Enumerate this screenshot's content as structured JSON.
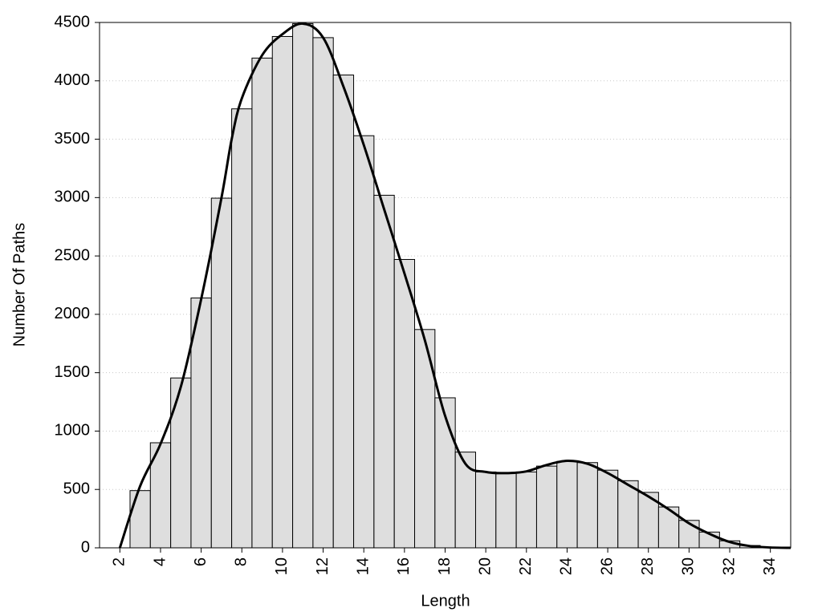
{
  "chart_data": {
    "type": "histogram",
    "x_label": "Length",
    "y_label": "Number Of Paths",
    "bins": [
      2.5,
      3.5,
      4.5,
      5.5,
      6.5,
      7.5,
      8.5,
      9.5,
      10.5,
      11.5,
      12.5,
      13.5,
      14.5,
      15.5,
      16.5,
      17.5,
      18.5,
      19.5,
      20.5,
      21.5,
      22.5,
      23.5,
      24.5,
      25.5,
      26.5,
      27.5,
      28.5,
      29.5,
      30.5,
      31.5,
      32.5,
      33.5,
      34.5
    ],
    "counts": [
      490,
      900,
      1455,
      2140,
      2995,
      3760,
      4195,
      4380,
      4490,
      4370,
      4050,
      3530,
      3020,
      2470,
      1870,
      1285,
      820,
      650,
      645,
      650,
      700,
      740,
      730,
      665,
      575,
      475,
      350,
      235,
      135,
      60,
      20,
      5
    ],
    "color": "#dedede",
    "line": {
      "color": "#000000",
      "x": [
        2,
        3,
        4,
        5,
        6,
        7,
        7.5,
        8,
        9,
        10,
        11,
        12,
        13,
        14,
        15,
        16,
        17,
        18,
        19,
        20,
        21,
        22,
        23,
        24,
        25,
        26,
        27,
        28,
        29,
        30,
        31,
        32,
        33,
        34,
        35
      ],
      "values": [
        0,
        530,
        890,
        1380,
        2130,
        3000,
        3500,
        3850,
        4220,
        4400,
        4490,
        4370,
        3950,
        3450,
        2900,
        2350,
        1780,
        1130,
        720,
        650,
        640,
        655,
        710,
        745,
        720,
        640,
        540,
        440,
        330,
        210,
        120,
        50,
        15,
        3,
        0
      ]
    },
    "xlim": [
      1,
      35
    ],
    "xticks": [
      2,
      4,
      6,
      8,
      10,
      12,
      14,
      16,
      18,
      20,
      22,
      24,
      26,
      28,
      30,
      32,
      34
    ],
    "ylim": [
      0,
      4500
    ],
    "yticks": [
      0,
      500,
      1000,
      1500,
      2000,
      2500,
      3000,
      3500,
      4000,
      4500
    ],
    "grid": true
  }
}
